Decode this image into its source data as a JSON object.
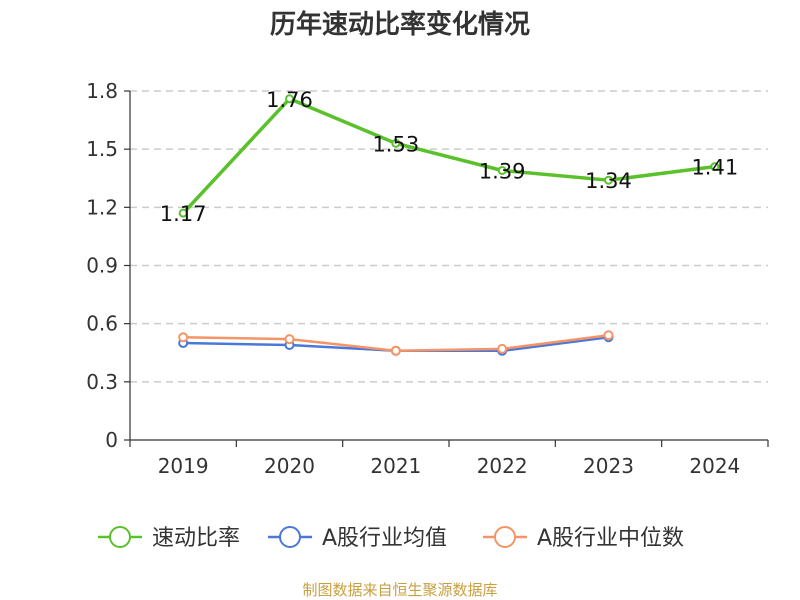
{
  "chart_data": {
    "type": "line",
    "title": "历年速动比率变化情况",
    "source": "制图数据来自恒生聚源数据库",
    "categories": [
      "2019",
      "2020",
      "2021",
      "2022",
      "2023",
      "2024"
    ],
    "y_ticks": [
      "0",
      "0.3",
      "0.6",
      "0.9",
      "1.2",
      "1.5",
      "1.8"
    ],
    "ylim": [
      0,
      1.8
    ],
    "grid": "horizontal dashed",
    "legend_position": "bottom",
    "series": [
      {
        "name": "速动比率",
        "color": "#5bc12a",
        "values": [
          1.17,
          1.76,
          1.53,
          1.39,
          1.34,
          1.41
        ],
        "labels": [
          "1.17",
          "1.76",
          "1.53",
          "1.39",
          "1.34",
          "1.41"
        ]
      },
      {
        "name": "A股行业均值",
        "color": "#4a78d8",
        "values": [
          0.5,
          0.49,
          0.46,
          0.46,
          0.53,
          null
        ]
      },
      {
        "name": "A股行业中位数",
        "color": "#f59466",
        "values": [
          0.53,
          0.52,
          0.46,
          0.47,
          0.54,
          null
        ]
      }
    ]
  }
}
